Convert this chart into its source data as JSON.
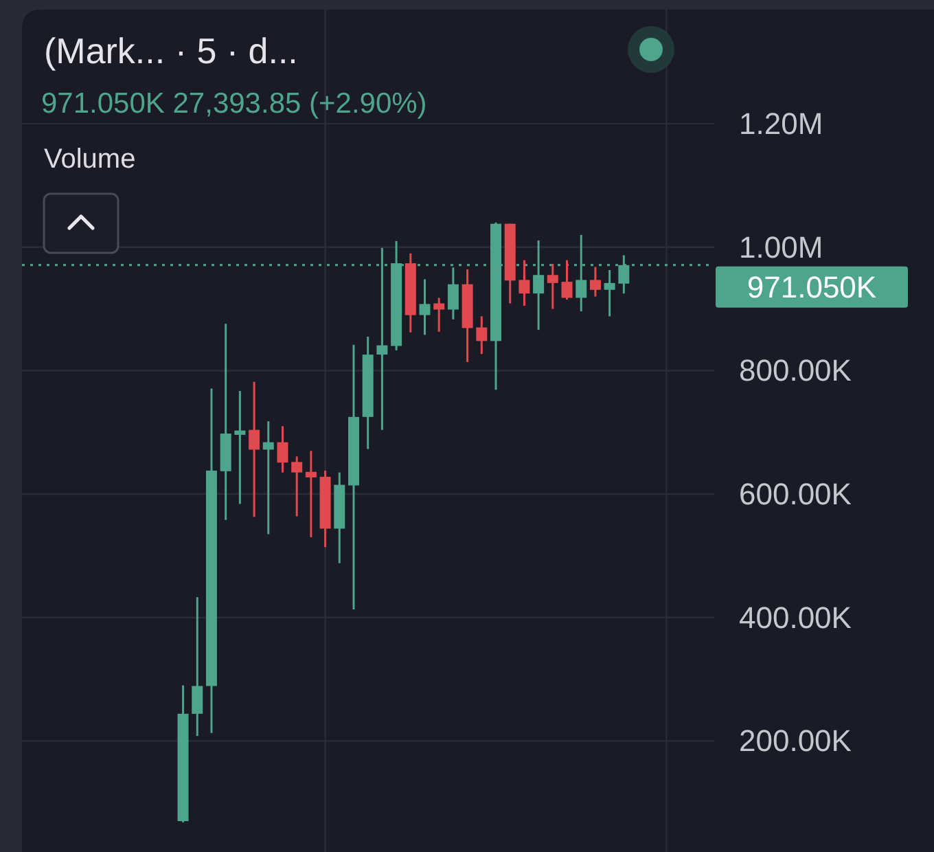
{
  "chart_data": {
    "type": "candlestick",
    "title": "(Mark... · 5 · d...",
    "subtitle": "971.050K 27,393.85 (+2.90%)",
    "annotations": [
      "Volume"
    ],
    "categories": [
      null,
      null,
      null,
      null,
      null,
      null,
      null,
      null,
      null,
      null,
      null,
      null,
      null,
      null,
      null,
      null,
      null,
      null,
      null,
      null,
      null,
      null,
      null,
      null,
      null,
      null,
      null,
      null,
      null,
      null,
      null,
      null
    ],
    "ohlc": [
      [
        70000,
        290000,
        68000,
        244000
      ],
      [
        244000,
        433000,
        208000,
        289000
      ],
      [
        289000,
        771000,
        213000,
        638000
      ],
      [
        637000,
        876000,
        558000,
        698000
      ],
      [
        696000,
        767000,
        584000,
        703000
      ],
      [
        704000,
        782000,
        563000,
        672000
      ],
      [
        672000,
        718000,
        535000,
        684000
      ],
      [
        684000,
        710000,
        635000,
        651000
      ],
      [
        652000,
        661000,
        564000,
        635000
      ],
      [
        636000,
        670000,
        530000,
        627000
      ],
      [
        628000,
        638000,
        514000,
        544000
      ],
      [
        544000,
        635000,
        488000,
        615000
      ],
      [
        614000,
        842000,
        413000,
        725000
      ],
      [
        725000,
        855000,
        673000,
        826000
      ],
      [
        826000,
        999000,
        704000,
        841000
      ],
      [
        840000,
        1010000,
        833000,
        974000
      ],
      [
        974000,
        990000,
        862000,
        890000
      ],
      [
        890000,
        948000,
        858000,
        908000
      ],
      [
        909000,
        918000,
        863000,
        899000
      ],
      [
        899000,
        967000,
        883000,
        940000
      ],
      [
        940000,
        964000,
        814000,
        869000
      ],
      [
        870000,
        888000,
        827000,
        848000
      ],
      [
        848000,
        1040000,
        769000,
        1038000
      ],
      [
        1038000,
        1038000,
        909000,
        946000
      ],
      [
        947000,
        979000,
        905000,
        925000
      ],
      [
        925000,
        1011000,
        866000,
        955000
      ],
      [
        955000,
        973000,
        900000,
        942000
      ],
      [
        944000,
        979000,
        915000,
        918000
      ],
      [
        918000,
        1020000,
        896000,
        947000
      ],
      [
        947000,
        968000,
        920000,
        931000
      ],
      [
        931000,
        963000,
        888000,
        942000
      ],
      [
        941000,
        987000,
        925000,
        971000
      ]
    ],
    "colors": [
      "#4da58c",
      "#4da58c",
      "#4da58c",
      "#4da58c",
      "#4da58c",
      "#e04a4f",
      "#4da58c",
      "#e04a4f",
      "#e04a4f",
      "#e04a4f",
      "#e04a4f",
      "#4da58c",
      "#4da58c",
      "#4da58c",
      "#4da58c",
      "#4da58c",
      "#e04a4f",
      "#4da58c",
      "#e04a4f",
      "#4da58c",
      "#e04a4f",
      "#e04a4f",
      "#4da58c",
      "#e04a4f",
      "#e04a4f",
      "#4da58c",
      "#e04a4f",
      "#e04a4f",
      "#4da58c",
      "#e04a4f",
      "#4da58c",
      "#4da58c"
    ],
    "ylim": [
      20000,
      1385000
    ],
    "yticks": [
      {
        "value": 200000,
        "label": "200.00K"
      },
      {
        "value": 400000,
        "label": "400.00K"
      },
      {
        "value": 600000,
        "label": "600.00K"
      },
      {
        "value": 800000,
        "label": "800.00K"
      },
      {
        "value": 1000000,
        "label": "1.00M"
      },
      {
        "value": 1200000,
        "label": "1.20M"
      }
    ],
    "grid": true,
    "ref_lines": [
      {
        "axis": "y",
        "value": 971050,
        "label": "971.050K",
        "color": "#4da58c",
        "line_style": "dotted"
      }
    ]
  }
}
